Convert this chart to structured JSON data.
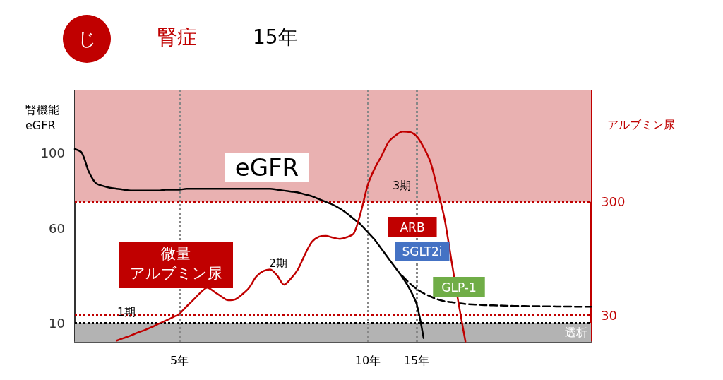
{
  "chart_data": {
    "type": "line",
    "title": "腎症",
    "subtitle": "15年",
    "ylabel": "腎機能\neGFR",
    "y2label": "アルブミン尿",
    "categories": [
      null,
      null,
      null,
      null,
      null,
      null,
      null,
      null,
      null,
      null,
      null,
      null,
      null,
      null,
      null,
      "5年",
      null,
      null,
      null,
      null,
      null,
      null,
      null,
      null,
      null,
      null,
      null,
      null,
      null,
      null,
      null,
      null,
      null,
      null,
      null,
      null,
      null,
      null,
      null,
      null,
      null,
      null,
      "10年",
      null,
      null,
      null,
      null,
      null,
      null,
      "15年",
      null,
      null,
      null,
      null,
      null,
      null,
      null,
      null,
      null,
      null,
      null,
      null,
      null,
      null,
      null,
      null,
      null,
      null,
      null,
      null,
      null,
      null,
      null,
      null,
      null
    ],
    "ylim": [
      0,
      133
    ],
    "yticks": [
      10,
      60,
      100
    ],
    "y2lim": [
      -33,
      565
    ],
    "y2ticks": [
      30,
      300
    ],
    "series": [
      {
        "color": "#000000",
        "line_style": "solid",
        "values": [
          102,
          100,
          90,
          84,
          82.5,
          81.5,
          81,
          80.5,
          80,
          80,
          80,
          80,
          80,
          80.5,
          80.5,
          80.5,
          81,
          81,
          81,
          81,
          81,
          81,
          81,
          81,
          81,
          81,
          81,
          81,
          81,
          80.5,
          80,
          79.5,
          79,
          78,
          77,
          75.5,
          74,
          72.5,
          70.5,
          68,
          65,
          62,
          58,
          54,
          49,
          44,
          39,
          34,
          28,
          20,
          2,
          null,
          null,
          null,
          null,
          null,
          null,
          null,
          null,
          null,
          null,
          null,
          null,
          null,
          null,
          null,
          null,
          null,
          null,
          null,
          null,
          null,
          null,
          null,
          null
        ]
      },
      {
        "color": "#000000",
        "line_style": "dashed",
        "values": [
          null,
          null,
          null,
          null,
          null,
          null,
          null,
          null,
          null,
          null,
          null,
          null,
          null,
          null,
          null,
          null,
          null,
          null,
          null,
          null,
          null,
          null,
          null,
          null,
          null,
          null,
          null,
          null,
          null,
          null,
          null,
          null,
          null,
          null,
          null,
          null,
          null,
          null,
          null,
          null,
          null,
          null,
          null,
          null,
          null,
          null,
          null,
          34.7,
          31,
          28,
          25.7,
          24,
          22.5,
          21.5,
          21,
          20.5,
          20,
          19.8,
          19.6,
          19.4,
          19.3,
          19.2,
          19.1,
          19,
          19,
          18.9,
          18.9,
          18.8,
          18.8,
          18.7,
          18.7,
          18.7,
          18.6,
          18.6,
          18.6
        ]
      },
      {
        "color": "#c00000",
        "line_style": "solid",
        "axis": "y2",
        "values": [
          null,
          null,
          null,
          null,
          null,
          null,
          -30,
          -24,
          -18,
          -11,
          -5,
          2,
          10,
          17,
          25,
          34,
          51,
          67,
          84,
          96,
          86,
          75,
          66,
          68,
          80,
          96,
          122,
          135,
          139,
          125,
          103,
          118,
          140,
          175,
          205,
          217,
          219,
          215,
          212,
          216,
          225,
          275,
          340,
          380,
          410,
          443,
          458,
          467,
          466,
          456,
          430,
          394,
          330,
          260,
          160,
          60,
          -32,
          null,
          null,
          null,
          null,
          null,
          null,
          null,
          null,
          null,
          null,
          null,
          null,
          null,
          null,
          null,
          null,
          null,
          null
        ]
      }
    ],
    "bands": [
      {
        "axis": "y2",
        "from": 300,
        "to": 565,
        "color": "#e9b1b1"
      },
      {
        "axis": "y",
        "from": 0,
        "to": 10,
        "color": "#b3b3b3",
        "label": "透析"
      }
    ],
    "ref_lines": [
      {
        "axis": "y2",
        "value": 300,
        "color": "#c00000",
        "line_style": "dotted"
      },
      {
        "axis": "y2",
        "value": 30,
        "color": "#c00000",
        "line_style": "dotted"
      },
      {
        "axis": "y",
        "value": 10,
        "color": "#000000",
        "line_style": "dotted"
      },
      {
        "axis": "x",
        "value": "5年",
        "color": "#888888",
        "line_style": "dotted"
      },
      {
        "axis": "x",
        "value": "10年",
        "color": "#888888",
        "line_style": "dotted"
      },
      {
        "axis": "x",
        "value": "15年",
        "color": "#888888",
        "line_style": "dotted"
      }
    ],
    "annotations": [
      "eGFR",
      "微量",
      "アルブミン尿",
      "1期",
      "2期",
      "3期",
      "ARB",
      "SGLT2i",
      "GLP-1",
      "じ"
    ],
    "marker": "none",
    "grid": false
  }
}
